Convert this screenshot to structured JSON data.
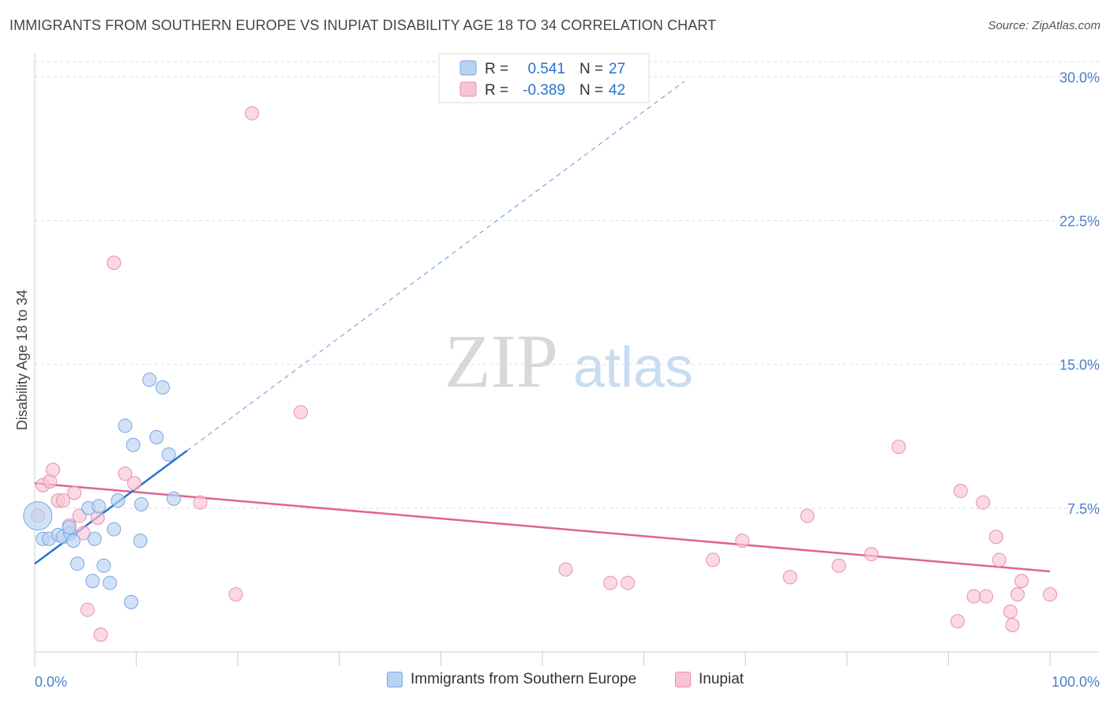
{
  "title": "IMMIGRANTS FROM SOUTHERN EUROPE VS INUPIAT DISABILITY AGE 18 TO 34 CORRELATION CHART",
  "source": "Source: ZipAtlas.com",
  "watermark": {
    "zip": "ZIP",
    "atlas": "atlas"
  },
  "colors": {
    "blue_fill": "#b8d2f2",
    "blue_stroke": "#7aa6e0",
    "blue_line": "#2a72d0",
    "pink_fill": "#f7c4d4",
    "pink_stroke": "#ea8fae",
    "pink_line": "#e0648f",
    "grid": "#dddddd",
    "axis_label": "#4a7fcf"
  },
  "legend": {
    "rows": [
      {
        "r_label": "R =",
        "r_value": "0.541",
        "n_label": "N =",
        "n_value": "27"
      },
      {
        "r_label": "R =",
        "r_value": "-0.389",
        "n_label": "N =",
        "n_value": "42"
      }
    ]
  },
  "chart_data": {
    "type": "scatter",
    "title": "IMMIGRANTS FROM SOUTHERN EUROPE VS INUPIAT DISABILITY AGE 18 TO 34 CORRELATION CHART",
    "xlabel": "",
    "ylabel": "Disability Age 18 to 34",
    "xlim": [
      0,
      100
    ],
    "ylim": [
      0,
      30.8
    ],
    "y_ticks": [
      7.5,
      15.0,
      22.5,
      30.0
    ],
    "y_tick_labels": [
      "7.5%",
      "15.0%",
      "22.5%",
      "30.0%"
    ],
    "x_tick_labels": [
      "0.0%",
      "100.0%"
    ],
    "series": [
      {
        "name": "Immigrants from Southern Europe",
        "color": "blue",
        "R": 0.541,
        "N": 27,
        "trend": {
          "x0": 0,
          "y0": 4.6,
          "x1": 15,
          "y1": 10.5,
          "dashed_to_x": 64
        },
        "points": [
          {
            "x": 0.3,
            "y": 7.1,
            "big": true
          },
          {
            "x": 0.8,
            "y": 5.9
          },
          {
            "x": 1.4,
            "y": 5.9
          },
          {
            "x": 2.3,
            "y": 6.1
          },
          {
            "x": 2.8,
            "y": 6.0
          },
          {
            "x": 3.5,
            "y": 6.2
          },
          {
            "x": 3.4,
            "y": 6.5
          },
          {
            "x": 3.8,
            "y": 5.8
          },
          {
            "x": 4.2,
            "y": 4.6
          },
          {
            "x": 5.3,
            "y": 7.5
          },
          {
            "x": 5.7,
            "y": 3.7
          },
          {
            "x": 5.9,
            "y": 5.9
          },
          {
            "x": 6.3,
            "y": 7.6
          },
          {
            "x": 6.8,
            "y": 4.5
          },
          {
            "x": 7.4,
            "y": 3.6
          },
          {
            "x": 7.8,
            "y": 6.4
          },
          {
            "x": 8.2,
            "y": 7.9
          },
          {
            "x": 8.9,
            "y": 11.8
          },
          {
            "x": 9.7,
            "y": 10.8
          },
          {
            "x": 10.4,
            "y": 5.8
          },
          {
            "x": 10.5,
            "y": 7.7
          },
          {
            "x": 11.3,
            "y": 14.2
          },
          {
            "x": 12.0,
            "y": 11.2
          },
          {
            "x": 12.6,
            "y": 13.8
          },
          {
            "x": 13.2,
            "y": 10.3
          },
          {
            "x": 13.7,
            "y": 8.0
          },
          {
            "x": 9.5,
            "y": 2.6
          }
        ]
      },
      {
        "name": "Inupiat",
        "color": "pink",
        "R": -0.389,
        "N": 42,
        "trend": {
          "x0": 0,
          "y0": 8.8,
          "x1": 100,
          "y1": 4.2
        },
        "points": [
          {
            "x": 0.3,
            "y": 7.1
          },
          {
            "x": 0.8,
            "y": 8.7
          },
          {
            "x": 1.5,
            "y": 8.9
          },
          {
            "x": 1.8,
            "y": 9.5
          },
          {
            "x": 2.3,
            "y": 7.9
          },
          {
            "x": 2.8,
            "y": 7.9
          },
          {
            "x": 3.4,
            "y": 6.6
          },
          {
            "x": 3.9,
            "y": 8.3
          },
          {
            "x": 4.4,
            "y": 7.1
          },
          {
            "x": 4.8,
            "y": 6.2
          },
          {
            "x": 5.2,
            "y": 2.2
          },
          {
            "x": 6.2,
            "y": 7.0
          },
          {
            "x": 6.5,
            "y": 0.9
          },
          {
            "x": 7.8,
            "y": 20.3
          },
          {
            "x": 8.9,
            "y": 9.3
          },
          {
            "x": 9.8,
            "y": 8.8
          },
          {
            "x": 16.3,
            "y": 7.8
          },
          {
            "x": 19.8,
            "y": 3.0
          },
          {
            "x": 21.4,
            "y": 28.1
          },
          {
            "x": 26.2,
            "y": 12.5
          },
          {
            "x": 52.3,
            "y": 4.3
          },
          {
            "x": 56.7,
            "y": 3.6
          },
          {
            "x": 58.4,
            "y": 3.6
          },
          {
            "x": 66.8,
            "y": 4.8
          },
          {
            "x": 69.7,
            "y": 5.8
          },
          {
            "x": 74.4,
            "y": 3.9
          },
          {
            "x": 76.1,
            "y": 7.1
          },
          {
            "x": 79.2,
            "y": 4.5
          },
          {
            "x": 82.4,
            "y": 5.1
          },
          {
            "x": 85.1,
            "y": 10.7
          },
          {
            "x": 90.9,
            "y": 1.6
          },
          {
            "x": 91.2,
            "y": 8.4
          },
          {
            "x": 92.5,
            "y": 2.9
          },
          {
            "x": 93.4,
            "y": 7.8
          },
          {
            "x": 93.7,
            "y": 2.9
          },
          {
            "x": 94.7,
            "y": 6.0
          },
          {
            "x": 95.0,
            "y": 4.8
          },
          {
            "x": 96.1,
            "y": 2.1
          },
          {
            "x": 96.3,
            "y": 1.4
          },
          {
            "x": 96.8,
            "y": 3.0
          },
          {
            "x": 97.2,
            "y": 3.7
          },
          {
            "x": 100.0,
            "y": 3.0
          }
        ]
      }
    ]
  }
}
